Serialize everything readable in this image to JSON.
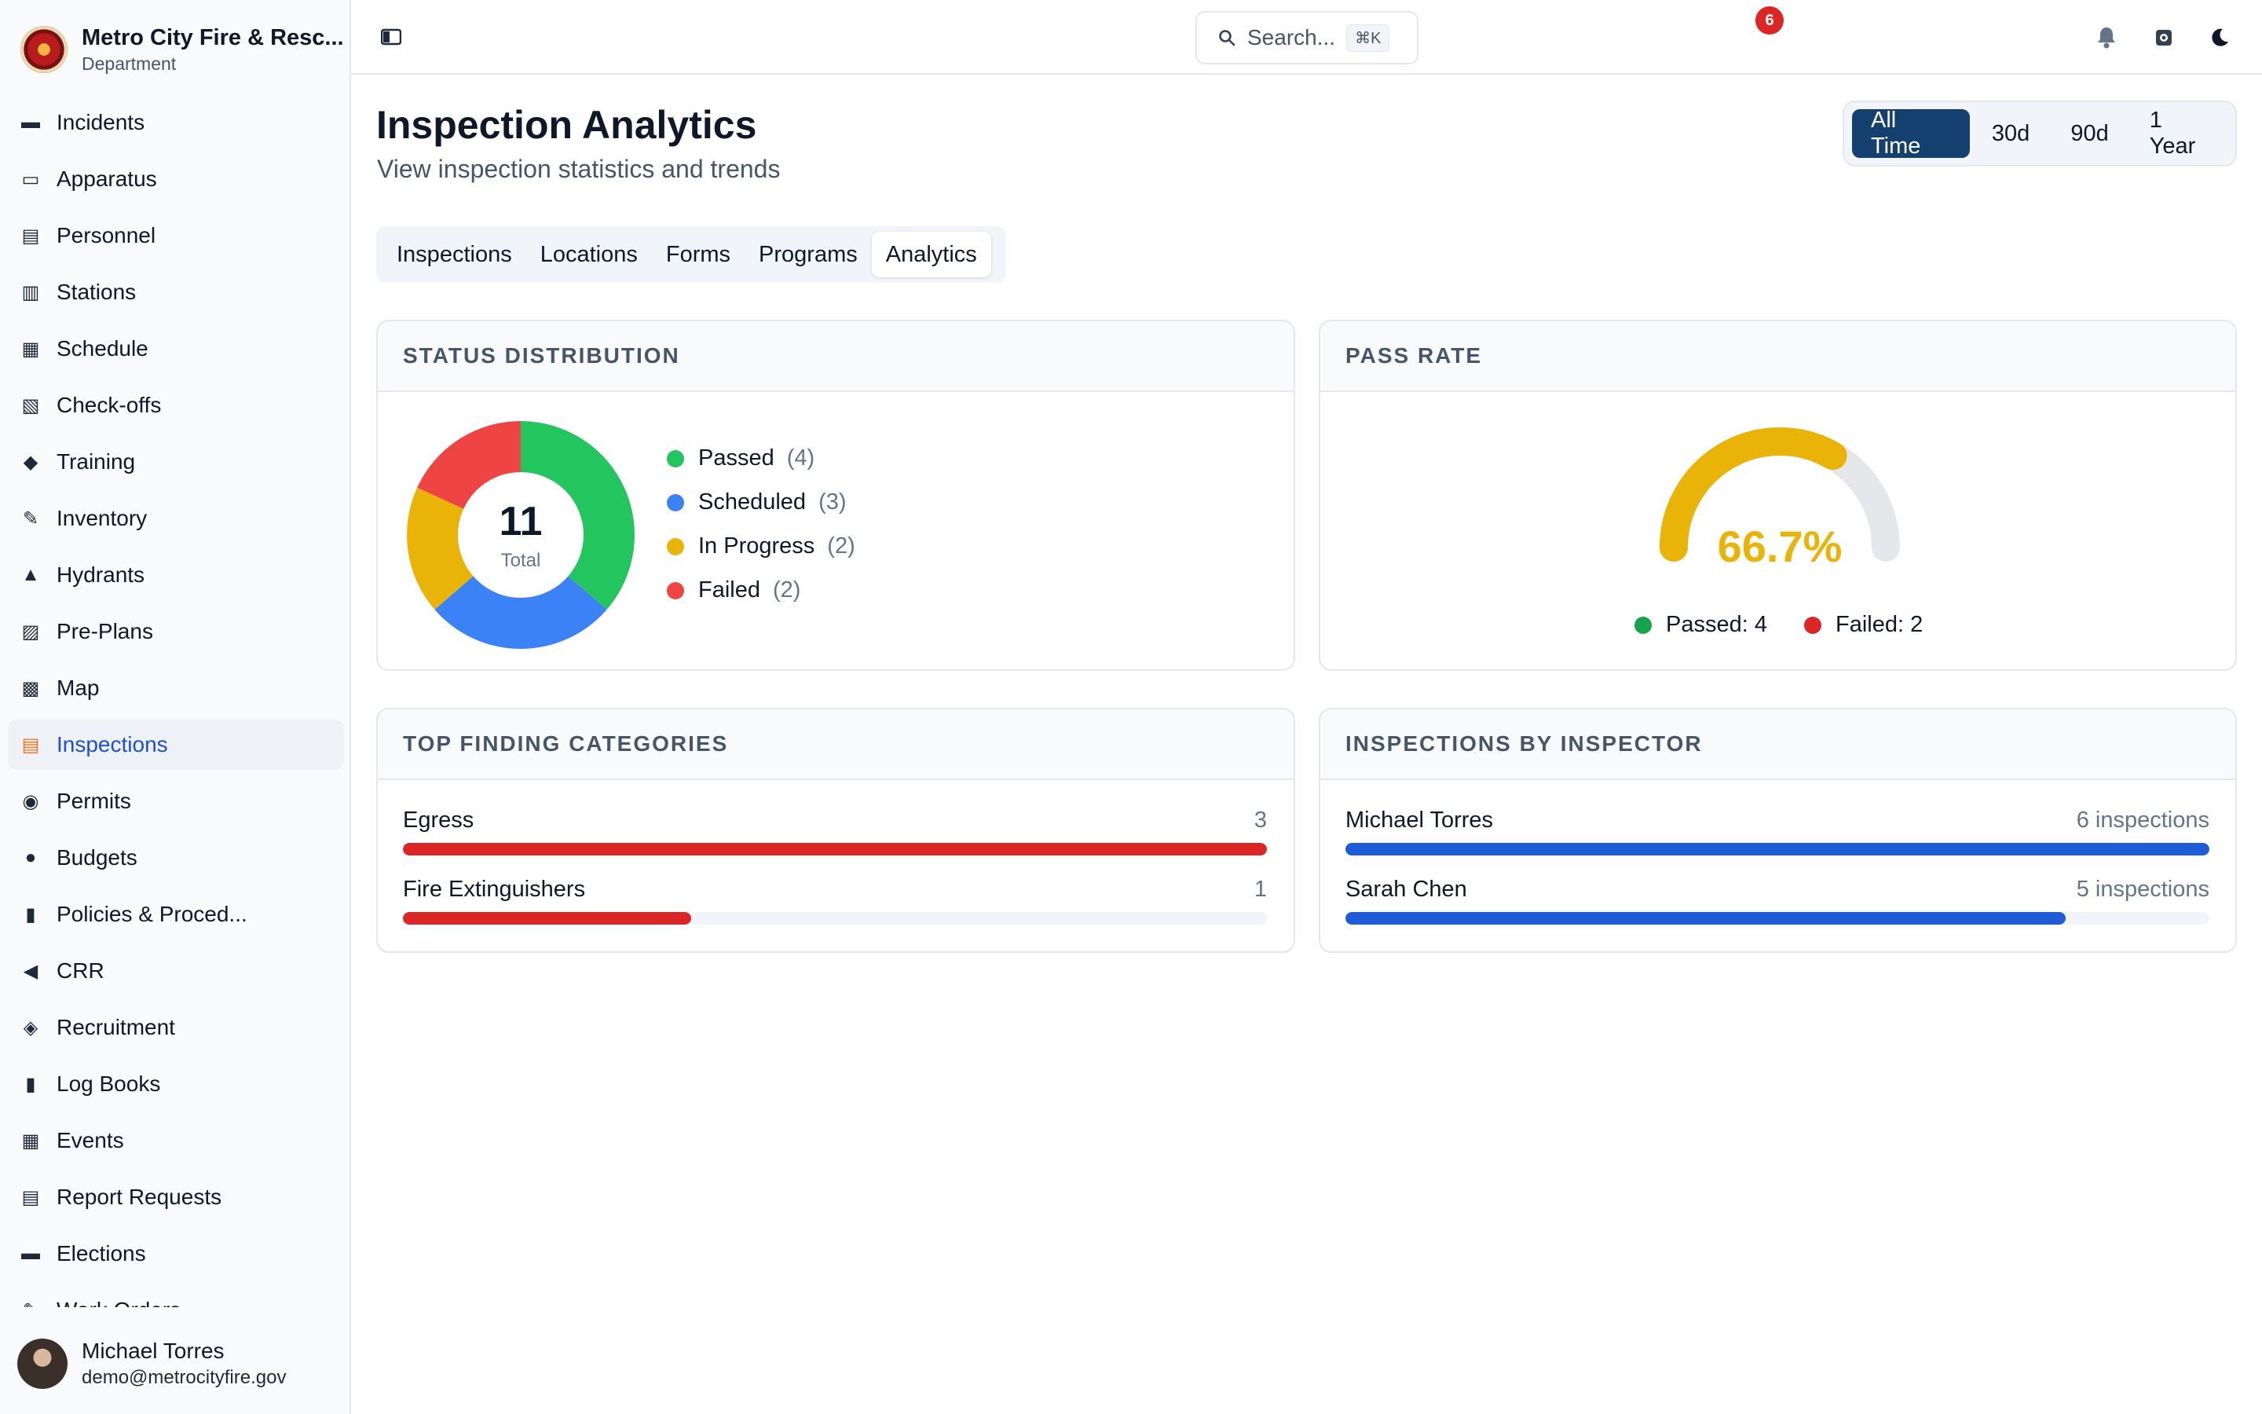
{
  "brand": {
    "name": "Metro City Fire & Resc...",
    "subtitle": "Department"
  },
  "nav": [
    {
      "label": "Incidents",
      "icon": "incident-icon"
    },
    {
      "label": "Apparatus",
      "icon": "truck-icon"
    },
    {
      "label": "Personnel",
      "icon": "id-card-icon"
    },
    {
      "label": "Stations",
      "icon": "building-icon"
    },
    {
      "label": "Schedule",
      "icon": "calendar-icon"
    },
    {
      "label": "Check-offs",
      "icon": "clipboard-icon"
    },
    {
      "label": "Training",
      "icon": "graduation-cap-icon"
    },
    {
      "label": "Inventory",
      "icon": "wrench-icon"
    },
    {
      "label": "Hydrants",
      "icon": "hydrant-icon"
    },
    {
      "label": "Pre-Plans",
      "icon": "document-search-icon"
    },
    {
      "label": "Map",
      "icon": "map-icon"
    },
    {
      "label": "Inspections",
      "icon": "checklist-icon"
    },
    {
      "label": "Permits",
      "icon": "permit-icon"
    },
    {
      "label": "Budgets",
      "icon": "piggy-bank-icon"
    },
    {
      "label": "Policies & Proced...",
      "icon": "book-icon"
    },
    {
      "label": "CRR",
      "icon": "megaphone-icon"
    },
    {
      "label": "Recruitment",
      "icon": "handshake-icon"
    },
    {
      "label": "Log Books",
      "icon": "books-icon"
    },
    {
      "label": "Events",
      "icon": "calendar-star-icon"
    },
    {
      "label": "Report Requests",
      "icon": "report-icon"
    },
    {
      "label": "Elections",
      "icon": "ballot-icon"
    },
    {
      "label": "Work Orders",
      "icon": "tools-icon"
    }
  ],
  "user": {
    "name": "Michael Torres",
    "email": "demo@metrocityfire.gov"
  },
  "topbar": {
    "search_placeholder": "Search...",
    "search_shortcut": "⌘K",
    "notification_count": "6"
  },
  "page": {
    "title": "Inspection Analytics",
    "subtitle": "View inspection statistics and trends"
  },
  "range": [
    "All Time",
    "30d",
    "90d",
    "1 Year"
  ],
  "tabs": [
    "Inspections",
    "Locations",
    "Forms",
    "Programs",
    "Analytics"
  ],
  "status": {
    "title": "STATUS DISTRIBUTION",
    "total": "11",
    "total_label": "Total",
    "items": [
      {
        "label": "Passed",
        "count": "(4)",
        "value": 4,
        "color": "#22c55e"
      },
      {
        "label": "Scheduled",
        "count": "(3)",
        "value": 3,
        "color": "#3b82f6"
      },
      {
        "label": "In Progress",
        "count": "(2)",
        "value": 2,
        "color": "#eab308"
      },
      {
        "label": "Failed",
        "count": "(2)",
        "value": 2,
        "color": "#ef4444"
      }
    ]
  },
  "pass_rate": {
    "title": "PASS RATE",
    "value_text": "66.7%",
    "value": 0.667,
    "color": "#eab308",
    "passed_label": "Passed: 4",
    "failed_label": "Failed: 2",
    "passed_color": "#16a34a",
    "failed_color": "#dc2626"
  },
  "findings": {
    "title": "TOP FINDING CATEGORIES",
    "max": 3,
    "color": "#dc2626",
    "items": [
      {
        "name": "Egress",
        "value_text": "3",
        "value": 3
      },
      {
        "name": "Fire Extinguishers",
        "value_text": "1",
        "value": 1
      }
    ]
  },
  "inspectors": {
    "title": "INSPECTIONS BY INSPECTOR",
    "max": 6,
    "color": "#1d5bd8",
    "items": [
      {
        "name": "Michael Torres",
        "value_text": "6 inspections",
        "value": 6
      },
      {
        "name": "Sarah Chen",
        "value_text": "5 inspections",
        "value": 5
      }
    ]
  }
}
